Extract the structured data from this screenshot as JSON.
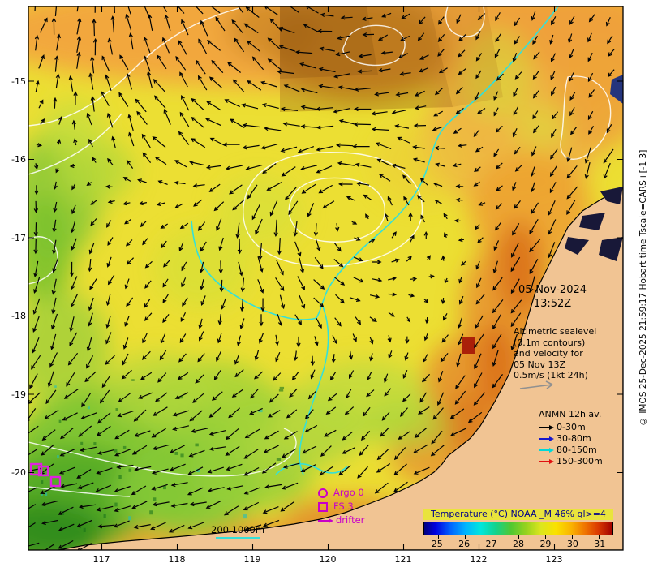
{
  "axes": {
    "lat_labels": [
      "-15",
      "-16",
      "-17",
      "-18",
      "-19",
      "-20"
    ],
    "lon_labels": [
      "117",
      "118",
      "119",
      "120",
      "121",
      "122",
      "123"
    ]
  },
  "overlay": {
    "date": "05-Nov-2024",
    "time": "13:52Z",
    "annotation_lines": [
      "Altimetric sealevel",
      "(0.1m contours)",
      "and velocity for",
      "05 Nov 13Z",
      "0.5m/s (1kt 24h)"
    ],
    "anmn": {
      "title": "ANMN 12h av.",
      "items": [
        {
          "label": "0-30m",
          "color": "#000000"
        },
        {
          "label": "30-80m",
          "color": "#1616cc"
        },
        {
          "label": "80-150m",
          "color": "#00d8d8"
        },
        {
          "label": "150-300m",
          "color": "#e01010"
        }
      ]
    },
    "platform_legend": {
      "argo": "Argo 0",
      "fs": "FS 3",
      "drifter": "drifter",
      "color": "#c800c8"
    },
    "isobath_legend": {
      "label": "200 1000m",
      "color": "#35e0d8"
    },
    "colorbar": {
      "title": "Temperature (°C) NOAA _M 46% ql>=4",
      "tick_labels": [
        "25",
        "26",
        "27",
        "28",
        "29",
        "30",
        "31"
      ]
    },
    "copyright": "© IMOS 25-Dec-2025 21:59:17 Hobart time Tscale=CARS+[-1 3]"
  },
  "colors": {
    "land": "#f1c493",
    "ocean_base": "#ecdf33",
    "velocity_arrow": "#050505",
    "sealevel_contour": "#ffffff",
    "isobath": "#35e0d8",
    "marker": "#e020e0"
  }
}
